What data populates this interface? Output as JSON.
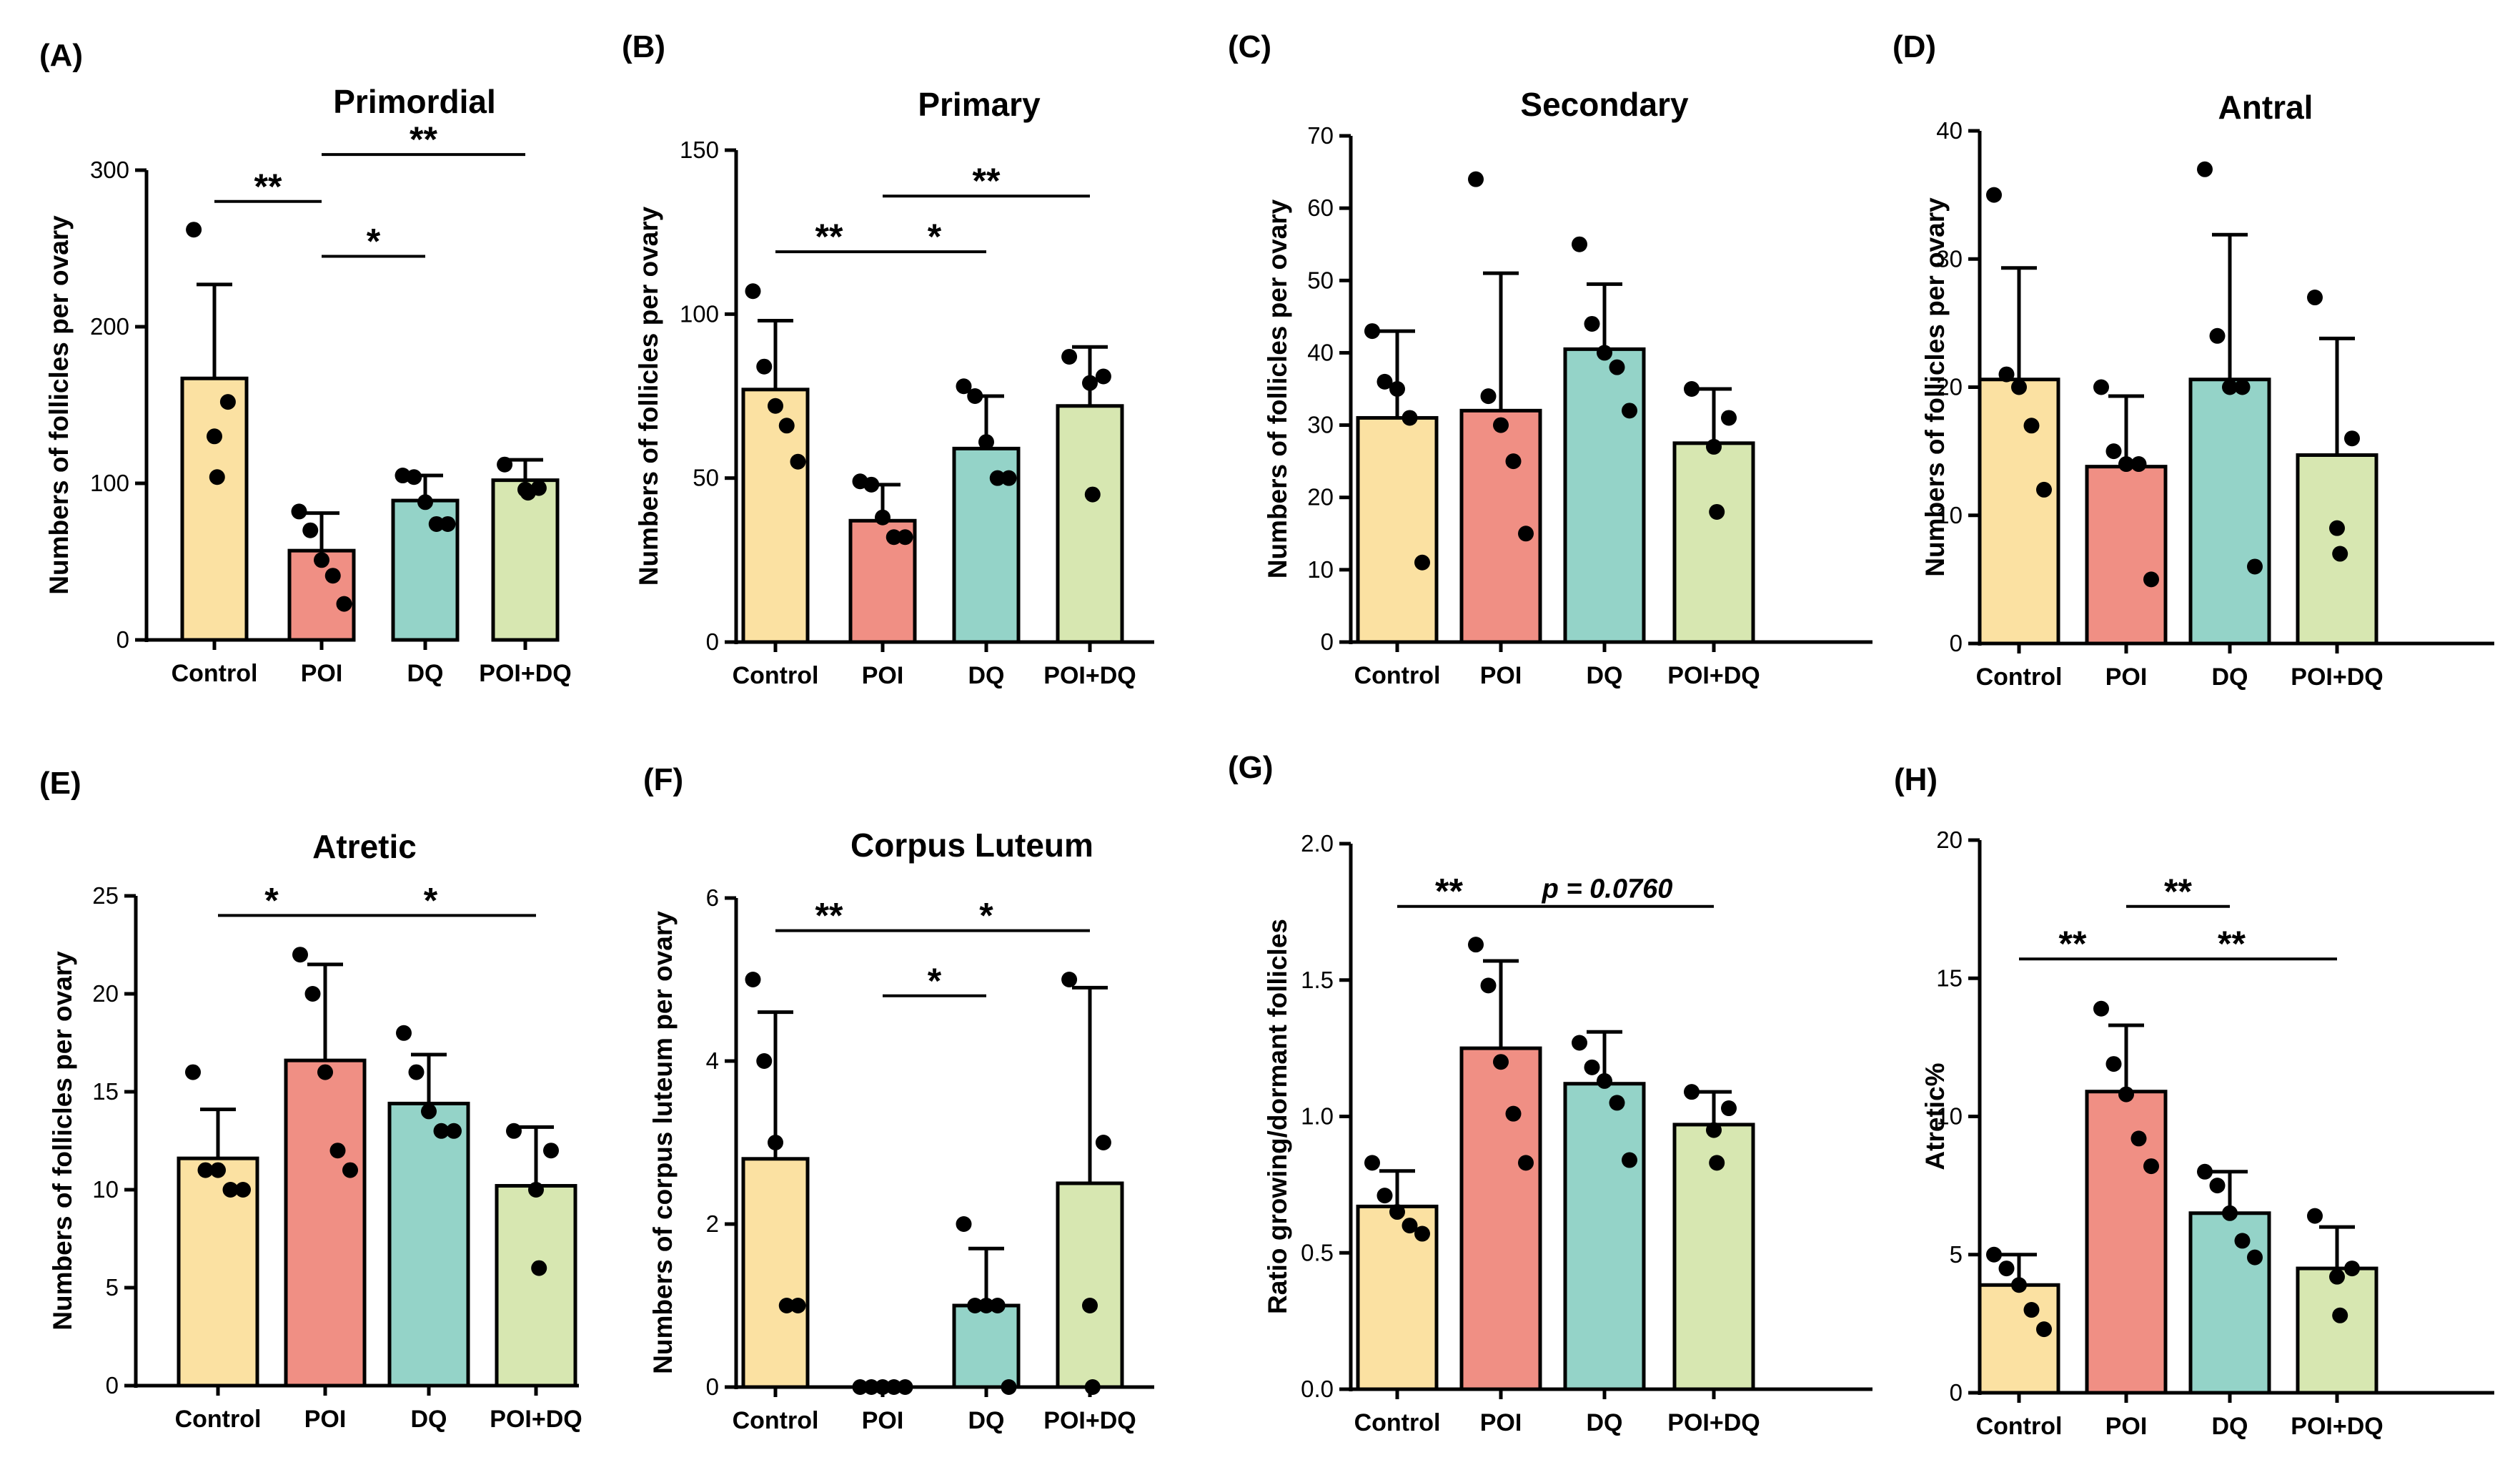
{
  "chart_data": [
    {
      "type": "bar",
      "panel_label": "(A)",
      "title": "Primordial",
      "ylabel": "Numbers of follicles per ovary",
      "categories": [
        "Control",
        "POI",
        "DQ",
        "POI+DQ"
      ],
      "colors": [
        "#fbe1a2",
        "#f08f84",
        "#94d3c8",
        "#d7e7b1"
      ],
      "ylim": [
        0,
        300
      ],
      "yticks": [
        "0",
        "100",
        "200",
        "300"
      ],
      "means": [
        167,
        57,
        89,
        102
      ],
      "sd": [
        60,
        24,
        16,
        13
      ],
      "points": [
        [
          262,
          152,
          130,
          104
        ],
        [
          82,
          70,
          51,
          41,
          23
        ],
        [
          105,
          104,
          88,
          74,
          74
        ],
        [
          112,
          97,
          96,
          94
        ]
      ],
      "annotations": [
        {
          "from": 0,
          "to": 1,
          "level": 280,
          "label": "**"
        },
        {
          "from": 1,
          "to": 2,
          "level": 245,
          "label": "*"
        },
        {
          "from": 1,
          "to": 3,
          "level": 310,
          "label": "**"
        }
      ]
    },
    {
      "type": "bar",
      "panel_label": "(B)",
      "title": "Primary",
      "ylabel": "Numbers of follicles per ovary",
      "categories": [
        "Control",
        "POI",
        "DQ",
        "POI+DQ"
      ],
      "colors": [
        "#fbe1a2",
        "#f08f84",
        "#94d3c8",
        "#d7e7b1"
      ],
      "ylim": [
        0,
        150
      ],
      "yticks": [
        "0",
        "50",
        "100",
        "150"
      ],
      "means": [
        77,
        37,
        59,
        72
      ],
      "sd": [
        21,
        11,
        16,
        18
      ],
      "points": [
        [
          107,
          84,
          72,
          66,
          55
        ],
        [
          49,
          48,
          38,
          32,
          32
        ],
        [
          78,
          75,
          61,
          50,
          50
        ],
        [
          87,
          81,
          79,
          45
        ]
      ],
      "annotations": [
        {
          "from": 0,
          "to": 1,
          "level": 119,
          "label": "**"
        },
        {
          "from": 1,
          "to": 2,
          "level": 119,
          "label": "*"
        },
        {
          "from": 1,
          "to": 3,
          "level": 136,
          "label": "**"
        }
      ]
    },
    {
      "type": "bar",
      "panel_label": "(C)",
      "title": "Secondary",
      "ylabel": "Numbers of follicles per ovary",
      "categories": [
        "Control",
        "POI",
        "DQ",
        "POI+DQ"
      ],
      "colors": [
        "#fbe1a2",
        "#f08f84",
        "#94d3c8",
        "#d7e7b1"
      ],
      "ylim": [
        0,
        70
      ],
      "yticks": [
        "0",
        "10",
        "20",
        "30",
        "40",
        "50",
        "60",
        "70"
      ],
      "means": [
        31,
        32,
        40.5,
        27.5
      ],
      "sd": [
        12,
        19,
        9,
        7.5
      ],
      "points": [
        [
          43,
          36,
          35,
          31,
          11
        ],
        [
          64,
          34,
          30,
          25,
          15
        ],
        [
          55,
          44,
          40,
          38,
          32
        ],
        [
          35,
          31,
          27,
          18
        ]
      ],
      "annotations": []
    },
    {
      "type": "bar",
      "panel_label": "(D)",
      "title": "Antral",
      "ylabel": "Numbers of follicles per ovary",
      "categories": [
        "Control",
        "POI",
        "DQ",
        "POI+DQ"
      ],
      "colors": [
        "#fbe1a2",
        "#f08f84",
        "#94d3c8",
        "#d7e7b1"
      ],
      "ylim": [
        0,
        40
      ],
      "yticks": [
        "0",
        "10",
        "20",
        "30",
        "40"
      ],
      "means": [
        20.6,
        13.8,
        20.6,
        14.7
      ],
      "sd": [
        8.7,
        5.5,
        11.3,
        9.1
      ],
      "points": [
        [
          35,
          21,
          20,
          17,
          12
        ],
        [
          20,
          15,
          14,
          14,
          5
        ],
        [
          37,
          24,
          20,
          20,
          6
        ],
        [
          27,
          16,
          9,
          7
        ]
      ],
      "annotations": []
    },
    {
      "type": "bar",
      "panel_label": "(E)",
      "title": "Atretic",
      "ylabel": "Numbers of follicles per ovary",
      "categories": [
        "Control",
        "POI",
        "DQ",
        "POI+DQ"
      ],
      "colors": [
        "#fbe1a2",
        "#f08f84",
        "#94d3c8",
        "#d7e7b1"
      ],
      "ylim": [
        0,
        25
      ],
      "yticks": [
        "0",
        "5",
        "10",
        "15",
        "20",
        "25"
      ],
      "means": [
        11.6,
        16.6,
        14.4,
        10.2
      ],
      "sd": [
        2.5,
        4.9,
        2.5,
        3
      ],
      "points": [
        [
          16,
          11,
          11,
          10,
          10
        ],
        [
          22,
          20,
          16,
          12,
          11
        ],
        [
          18,
          16,
          14,
          13,
          13
        ],
        [
          13,
          12,
          10,
          6
        ]
      ],
      "annotations": [
        {
          "from": 0,
          "to": 1,
          "level": 24,
          "label": "*"
        },
        {
          "from": 1,
          "to": 3,
          "level": 24,
          "label": "*"
        }
      ]
    },
    {
      "type": "bar",
      "panel_label": "(F)",
      "title": "Corpus Luteum",
      "ylabel": "Numbers of corpus luteum per ovary",
      "categories": [
        "Control",
        "POI",
        "DQ",
        "POI+DQ"
      ],
      "colors": [
        "#fbe1a2",
        "#f08f84",
        "#94d3c8",
        "#d7e7b1"
      ],
      "ylim": [
        0,
        6
      ],
      "yticks": [
        "0",
        "2",
        "4",
        "6"
      ],
      "means": [
        2.8,
        0,
        1,
        2.5
      ],
      "sd": [
        1.8,
        0,
        0.7,
        2.4
      ],
      "points": [
        [
          5,
          4,
          3,
          1,
          1
        ],
        [
          0,
          0,
          0,
          0,
          0
        ],
        [
          2,
          1,
          1,
          1,
          0
        ],
        [
          5,
          3,
          1,
          0
        ]
      ],
      "annotations": [
        {
          "from": 0,
          "to": 1,
          "level": 5.6,
          "label": "**"
        },
        {
          "from": 1,
          "to": 2,
          "level": 4.8,
          "label": "*"
        },
        {
          "from": 1,
          "to": 3,
          "level": 5.6,
          "label": "*"
        }
      ]
    },
    {
      "type": "bar",
      "panel_label": "(G)",
      "title": "",
      "ylabel": "Ratio growing/dormant follicles",
      "categories": [
        "Control",
        "POI",
        "DQ",
        "POI+DQ"
      ],
      "colors": [
        "#fbe1a2",
        "#f08f84",
        "#94d3c8",
        "#d7e7b1"
      ],
      "ylim": [
        0,
        2
      ],
      "yticks": [
        "0.0",
        "0.5",
        "1.0",
        "1.5",
        "2.0"
      ],
      "means": [
        0.67,
        1.25,
        1.12,
        0.97
      ],
      "sd": [
        0.13,
        0.32,
        0.19,
        0.12
      ],
      "points": [
        [
          0.83,
          0.71,
          0.65,
          0.6,
          0.57
        ],
        [
          1.63,
          1.48,
          1.2,
          1.01,
          0.83
        ],
        [
          1.27,
          1.18,
          1.13,
          1.05,
          0.84
        ],
        [
          1.09,
          1.03,
          0.95,
          0.83
        ]
      ],
      "annotations": [
        {
          "from": 0,
          "to": 1,
          "level": 1.77,
          "label": "**"
        },
        {
          "from": 1,
          "to": 3,
          "level": 1.77,
          "label": "p = 0.0760"
        }
      ]
    },
    {
      "type": "bar",
      "panel_label": "(H)",
      "title": "",
      "ylabel": "Atretic%",
      "categories": [
        "Control",
        "POI",
        "DQ",
        "POI+DQ"
      ],
      "colors": [
        "#fbe1a2",
        "#f08f84",
        "#94d3c8",
        "#d7e7b1"
      ],
      "ylim": [
        0,
        20
      ],
      "yticks": [
        "0",
        "5",
        "10",
        "15",
        "20"
      ],
      "means": [
        3.9,
        10.9,
        6.5,
        4.5
      ],
      "sd": [
        1.1,
        2.4,
        1.5,
        1.5
      ],
      "points": [
        [
          5,
          4.5,
          3.9,
          3,
          2.3
        ],
        [
          13.9,
          11.9,
          10.8,
          9.2,
          8.2
        ],
        [
          8,
          7.5,
          6.5,
          5.5,
          4.9
        ],
        [
          6.4,
          4.5,
          4.2,
          2.8
        ]
      ],
      "annotations": [
        {
          "from": 1,
          "to": 2,
          "level": 17.6,
          "label": "**"
        },
        {
          "from": 0,
          "to": 1,
          "level": 15.7,
          "label": "**"
        },
        {
          "from": 1,
          "to": 3,
          "level": 15.7,
          "label": "**"
        }
      ]
    }
  ]
}
